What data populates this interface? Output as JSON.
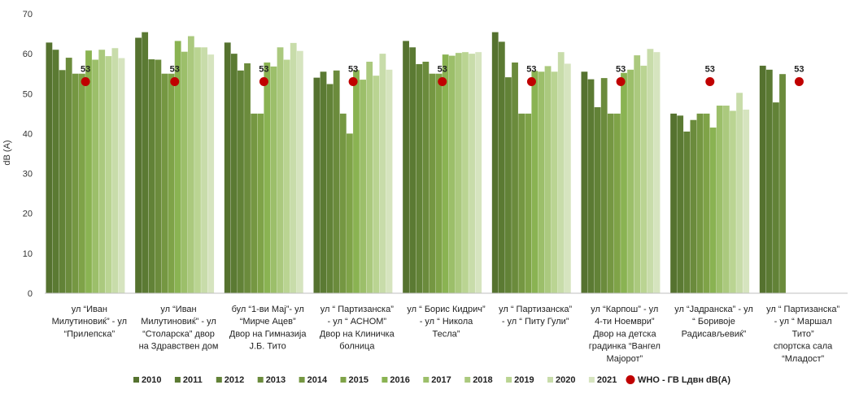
{
  "chart_data": {
    "type": "bar",
    "ylabel": "dB (A)",
    "ylim": [
      0,
      70
    ],
    "yticks": [
      0,
      10,
      20,
      30,
      40,
      50,
      60,
      70
    ],
    "grid": false,
    "legend_position": "bottom",
    "categories": [
      [
        "ул “Иван",
        "Милутиновиќ” - ул",
        "“Прилепска”"
      ],
      [
        "ул “Иван",
        "Милутиновиќ” - ул",
        "“Столарска” двор",
        "на Здравствен дом"
      ],
      [
        "бул “1-ви Мај”- ул",
        "“Мирче Ацев”",
        "Двор на Гимназија",
        "Ј.Б. Тито"
      ],
      [
        "ул “ Партизанска”",
        "- ул “ АСНОМ”",
        "Двор на Клиничка",
        "болница"
      ],
      [
        "ул “ Борис Кидрич”",
        "- ул “ Никола",
        "Тесла”"
      ],
      [
        "ул “ Партизанска”",
        "- ул “ Питу Гули”"
      ],
      [
        "ул “Карпош” - ул",
        "4-ти Ноември”",
        "Двор на детска",
        "градинка “Вангел",
        "Мајорот”"
      ],
      [
        "ул “Јадранска” - ул",
        "“ Боривоје",
        "Радисављевиќ”"
      ],
      [
        "ул “ Партизанска”",
        "- ул “ Маршал",
        "Тито”",
        "спортска сала",
        "“Младост”"
      ]
    ],
    "series": [
      {
        "name": "2010",
        "color": "#55722f",
        "values": [
          62.8,
          64.0,
          62.8,
          54.0,
          63.2,
          65.4,
          55.5,
          45.0,
          57.0
        ]
      },
      {
        "name": "2011",
        "color": "#5b7a33",
        "values": [
          61.0,
          65.4,
          60.0,
          55.5,
          61.6,
          63.0,
          53.6,
          44.5,
          56.0
        ]
      },
      {
        "name": "2012",
        "color": "#628237",
        "values": [
          55.9,
          58.6,
          55.8,
          52.4,
          57.4,
          54.1,
          46.6,
          40.5,
          47.8
        ]
      },
      {
        "name": "2013",
        "color": "#6b8b3c",
        "values": [
          59.0,
          58.5,
          57.6,
          55.8,
          58.0,
          57.8,
          53.9,
          43.4,
          54.9
        ]
      },
      {
        "name": "2014",
        "color": "#759742",
        "values": [
          55.0,
          55.0,
          45.0,
          45.0,
          55.0,
          45.0,
          45.0,
          45.0,
          null
        ]
      },
      {
        "name": "2015",
        "color": "#7fa348",
        "values": [
          55.0,
          55.0,
          45.0,
          40.0,
          55.0,
          45.0,
          45.0,
          45.0,
          null
        ]
      },
      {
        "name": "2016",
        "color": "#8ab352",
        "values": [
          60.8,
          63.2,
          57.8,
          55.9,
          59.8,
          55.7,
          55.2,
          41.5,
          null
        ]
      },
      {
        "name": "2017",
        "color": "#9cbf6a",
        "values": [
          58.5,
          60.5,
          56.8,
          53.5,
          59.5,
          55.5,
          56.0,
          47.0,
          null
        ]
      },
      {
        "name": "2018",
        "color": "#abc97e",
        "values": [
          61.0,
          64.4,
          61.6,
          58.0,
          60.2,
          56.9,
          59.6,
          47.0,
          null
        ]
      },
      {
        "name": "2019",
        "color": "#bad492",
        "values": [
          59.4,
          61.6,
          58.5,
          54.5,
          60.4,
          55.5,
          57.0,
          45.7,
          null
        ]
      },
      {
        "name": "2020",
        "color": "#c8dcaa",
        "values": [
          61.4,
          61.6,
          62.7,
          60.0,
          60.0,
          60.4,
          61.2,
          50.2,
          null
        ]
      },
      {
        "name": "2021",
        "color": "#d6e4bf",
        "values": [
          58.9,
          59.8,
          60.7,
          56.0,
          60.4,
          57.5,
          60.4,
          46.0,
          null
        ]
      }
    ],
    "reference": {
      "name": "WHO - ГВ Lдвн  dB(A)",
      "color": "#c00000",
      "value": 53,
      "label": "53"
    }
  }
}
